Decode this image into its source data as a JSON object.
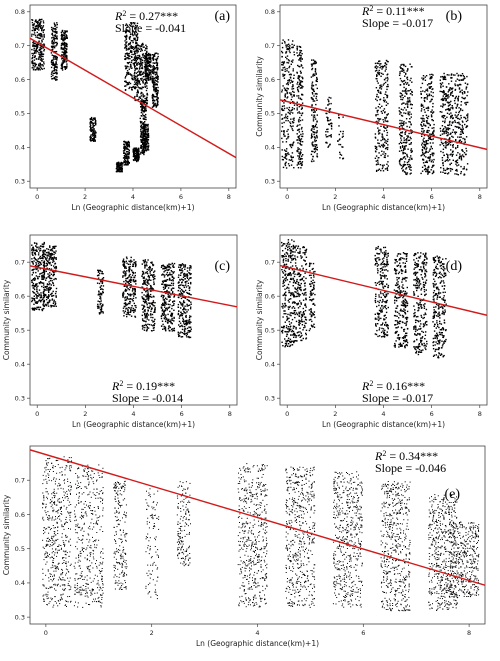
{
  "chart_data": [
    {
      "type": "scatter",
      "panel": "(a)",
      "xlabel": "Ln (Geographic distance(km)+1)",
      "ylabel": "",
      "xlim": [
        -0.3,
        8.3
      ],
      "ylim": [
        0.28,
        0.82
      ],
      "xticks": [
        "0",
        "2",
        "4",
        "6",
        "8"
      ],
      "yticks": [
        "0.3",
        "0.4",
        "0.5",
        "0.6",
        "0.7",
        "0.8"
      ],
      "r2": "0.27",
      "stars": "***",
      "slope": "-0.041",
      "fit": {
        "intercept": 0.71,
        "slope": -0.041,
        "color": "#d11a1a"
      },
      "clusters": [
        {
          "x": 0.0,
          "y_min": 0.63,
          "y_max": 0.78,
          "density": 1.0
        },
        {
          "x": 0.69,
          "y_min": 0.6,
          "y_max": 0.77,
          "density": 0.6
        },
        {
          "x": 1.1,
          "y_min": 0.63,
          "y_max": 0.75,
          "density": 0.6
        },
        {
          "x": 2.3,
          "y_min": 0.42,
          "y_max": 0.49,
          "density": 0.4
        },
        {
          "x": 3.4,
          "y_min": 0.33,
          "y_max": 0.36,
          "density": 0.4
        },
        {
          "x": 3.7,
          "y_min": 0.35,
          "y_max": 0.42,
          "density": 0.5
        },
        {
          "x": 3.9,
          "y_min": 0.57,
          "y_max": 0.77,
          "density": 1.0
        },
        {
          "x": 4.1,
          "y_min": 0.36,
          "y_max": 0.4,
          "density": 0.5
        },
        {
          "x": 4.3,
          "y_min": 0.53,
          "y_max": 0.71,
          "density": 0.9
        },
        {
          "x": 4.4,
          "y_min": 0.38,
          "y_max": 0.54,
          "density": 0.7
        },
        {
          "x": 4.5,
          "y_min": 0.39,
          "y_max": 0.47,
          "density": 0.5
        },
        {
          "x": 4.6,
          "y_min": 0.6,
          "y_max": 0.68,
          "density": 0.6
        },
        {
          "x": 4.9,
          "y_min": 0.52,
          "y_max": 0.68,
          "density": 0.7
        }
      ]
    },
    {
      "type": "scatter",
      "panel": "(b)",
      "xlabel": "Ln (Geographic distance(km)+1)",
      "ylabel": "Community similarity",
      "xlim": [
        -0.3,
        8.3
      ],
      "ylim": [
        0.28,
        0.82
      ],
      "xticks": [
        "0",
        "2",
        "4",
        "6",
        "8"
      ],
      "yticks": [
        "0.3",
        "0.4",
        "0.5",
        "0.6",
        "0.7",
        "0.8"
      ],
      "r2": "0.11",
      "stars": "***",
      "slope": "-0.017",
      "fit": {
        "intercept": 0.535,
        "slope": -0.017,
        "color": "#d11a1a"
      },
      "clusters": [
        {
          "x": 0.0,
          "y_min": 0.34,
          "y_max": 0.72,
          "density": 1.0
        },
        {
          "x": 0.5,
          "y_min": 0.34,
          "y_max": 0.7,
          "density": 0.7
        },
        {
          "x": 1.1,
          "y_min": 0.36,
          "y_max": 0.66,
          "density": 0.6
        },
        {
          "x": 1.7,
          "y_min": 0.4,
          "y_max": 0.55,
          "density": 0.2
        },
        {
          "x": 2.2,
          "y_min": 0.36,
          "y_max": 0.5,
          "density": 0.1
        },
        {
          "x": 3.9,
          "y_min": 0.33,
          "y_max": 0.66,
          "density": 0.9
        },
        {
          "x": 4.9,
          "y_min": 0.32,
          "y_max": 0.65,
          "density": 1.0
        },
        {
          "x": 5.8,
          "y_min": 0.32,
          "y_max": 0.62,
          "density": 1.0
        },
        {
          "x": 6.6,
          "y_min": 0.32,
          "y_max": 0.62,
          "density": 1.0
        },
        {
          "x": 7.2,
          "y_min": 0.32,
          "y_max": 0.62,
          "density": 0.8
        }
      ]
    },
    {
      "type": "scatter",
      "panel": "(c)",
      "xlabel": "Ln (Geographic distance(km)+1)",
      "ylabel": "Community similarity",
      "xlim": [
        -0.3,
        8.3
      ],
      "ylim": [
        0.28,
        0.78
      ],
      "xticks": [
        "0",
        "2",
        "4",
        "6",
        "8"
      ],
      "yticks": [
        "0.3",
        "0.4",
        "0.5",
        "0.6",
        "0.7"
      ],
      "r2": "0.19",
      "stars": "***",
      "slope": "-0.014",
      "fit": {
        "intercept": 0.685,
        "slope": -0.014,
        "color": "#d11a1a"
      },
      "clusters": [
        {
          "x": 0.0,
          "y_min": 0.56,
          "y_max": 0.76,
          "density": 1.0
        },
        {
          "x": 0.5,
          "y_min": 0.57,
          "y_max": 0.75,
          "density": 0.9
        },
        {
          "x": 2.6,
          "y_min": 0.55,
          "y_max": 0.68,
          "density": 0.3
        },
        {
          "x": 3.8,
          "y_min": 0.54,
          "y_max": 0.72,
          "density": 0.9
        },
        {
          "x": 4.6,
          "y_min": 0.5,
          "y_max": 0.71,
          "density": 1.0
        },
        {
          "x": 5.4,
          "y_min": 0.5,
          "y_max": 0.7,
          "density": 1.0
        },
        {
          "x": 6.1,
          "y_min": 0.48,
          "y_max": 0.7,
          "density": 1.0
        }
      ]
    },
    {
      "type": "scatter",
      "panel": "(d)",
      "xlabel": "Ln (Geographic distance(km)+1)",
      "ylabel": "Community similarity",
      "xlim": [
        -0.3,
        8.3
      ],
      "ylim": [
        0.28,
        0.78
      ],
      "xticks": [
        "0",
        "2",
        "4",
        "6",
        "8"
      ],
      "yticks": [
        "0.3",
        "0.4",
        "0.5",
        "0.6",
        "0.7"
      ],
      "r2": "0.16",
      "stars": "***",
      "slope": "-0.017",
      "fit": {
        "intercept": 0.685,
        "slope": -0.017,
        "color": "#d11a1a"
      },
      "clusters": [
        {
          "x": 0.0,
          "y_min": 0.45,
          "y_max": 0.77,
          "density": 1.0
        },
        {
          "x": 0.5,
          "y_min": 0.47,
          "y_max": 0.75,
          "density": 0.9
        },
        {
          "x": 1.0,
          "y_min": 0.5,
          "y_max": 0.7,
          "density": 0.3
        },
        {
          "x": 3.9,
          "y_min": 0.48,
          "y_max": 0.75,
          "density": 0.9
        },
        {
          "x": 4.7,
          "y_min": 0.45,
          "y_max": 0.73,
          "density": 1.0
        },
        {
          "x": 5.5,
          "y_min": 0.43,
          "y_max": 0.73,
          "density": 1.0
        },
        {
          "x": 6.3,
          "y_min": 0.42,
          "y_max": 0.72,
          "density": 1.0
        }
      ]
    },
    {
      "type": "scatter",
      "panel": "(e)",
      "xlabel": "Ln (Geographic distance(km)+1)",
      "ylabel": "Community similarity",
      "xlim": [
        -0.3,
        8.3
      ],
      "ylim": [
        0.28,
        0.8
      ],
      "xticks": [
        "0",
        "2",
        "4",
        "6",
        "8"
      ],
      "yticks": [
        "0.3",
        "0.4",
        "0.5",
        "0.6",
        "0.7"
      ],
      "r2": "0.34",
      "stars": "***",
      "slope": "-0.046",
      "fit": {
        "intercept": 0.775,
        "slope": -0.046,
        "color": "#d11a1a"
      },
      "clusters": [
        {
          "x": 0.2,
          "y_min": 0.33,
          "y_max": 0.77,
          "density": 1.0
        },
        {
          "x": 0.8,
          "y_min": 0.33,
          "y_max": 0.75,
          "density": 0.8
        },
        {
          "x": 1.4,
          "y_min": 0.38,
          "y_max": 0.7,
          "density": 0.4
        },
        {
          "x": 2.0,
          "y_min": 0.35,
          "y_max": 0.68,
          "density": 0.2
        },
        {
          "x": 2.6,
          "y_min": 0.45,
          "y_max": 0.7,
          "density": 0.3
        },
        {
          "x": 3.9,
          "y_min": 0.33,
          "y_max": 0.75,
          "density": 1.0
        },
        {
          "x": 4.8,
          "y_min": 0.33,
          "y_max": 0.74,
          "density": 1.0
        },
        {
          "x": 5.7,
          "y_min": 0.33,
          "y_max": 0.73,
          "density": 1.0
        },
        {
          "x": 6.6,
          "y_min": 0.32,
          "y_max": 0.7,
          "density": 1.0
        },
        {
          "x": 7.5,
          "y_min": 0.32,
          "y_max": 0.66,
          "density": 1.0
        },
        {
          "x": 7.9,
          "y_min": 0.36,
          "y_max": 0.58,
          "density": 0.8
        }
      ]
    }
  ]
}
